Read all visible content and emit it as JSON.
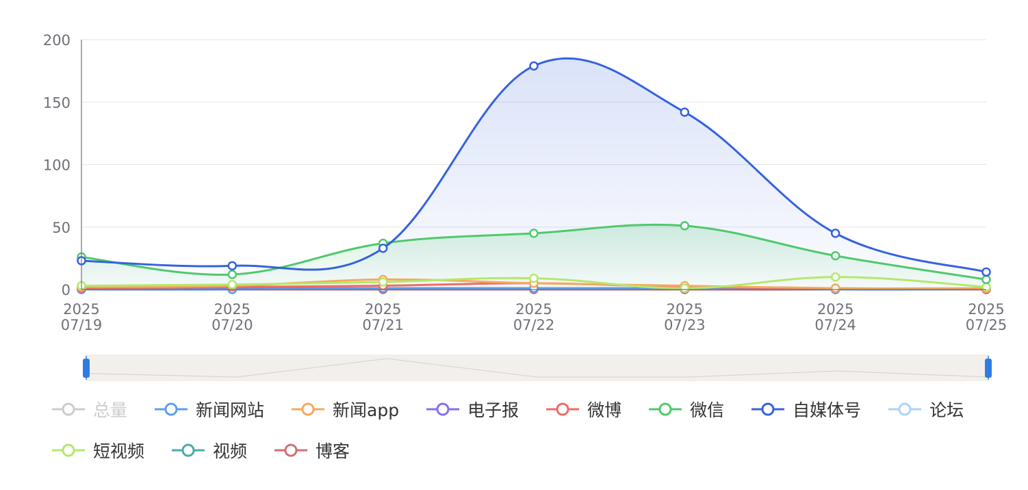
{
  "chart_data": {
    "type": "line",
    "x": [
      "2025\n07/19",
      "2025\n07/20",
      "2025\n07/21",
      "2025\n07/22",
      "2025\n07/23",
      "2025\n07/24",
      "2025\n07/25"
    ],
    "ylim": [
      0,
      200
    ],
    "yticks": [
      0,
      50,
      100,
      150,
      200
    ],
    "grid": true,
    "legend_position": "bottom",
    "series": [
      {
        "name": "总量",
        "color": "#c8c8c8",
        "visible": false,
        "values": [
          null,
          null,
          null,
          null,
          null,
          null,
          null
        ]
      },
      {
        "name": "新闻网站",
        "color": "#5a9ff0",
        "visible": true,
        "values": [
          0,
          0,
          1,
          1,
          1,
          0,
          0
        ]
      },
      {
        "name": "新闻app",
        "color": "#f6a95b",
        "visible": true,
        "values": [
          2,
          3,
          8,
          5,
          3,
          1,
          1
        ]
      },
      {
        "name": "电子报",
        "color": "#8a6cf0",
        "visible": true,
        "values": [
          1,
          1,
          1,
          1,
          0,
          0,
          0
        ]
      },
      {
        "name": "微博",
        "color": "#f36a63",
        "visible": true,
        "values": [
          1,
          2,
          3,
          5,
          2,
          1,
          0
        ]
      },
      {
        "name": "微信",
        "color": "#4ec96c",
        "visible": true,
        "area": true,
        "values": [
          26,
          12,
          37,
          45,
          51,
          27,
          8
        ]
      },
      {
        "name": "自媒体号",
        "color": "#3561de",
        "visible": true,
        "area": true,
        "values": [
          23,
          19,
          33,
          179,
          142,
          45,
          14
        ]
      },
      {
        "name": "论坛",
        "color": "#aad3f8",
        "visible": true,
        "values": [
          0,
          0,
          0,
          0,
          0,
          0,
          0
        ]
      },
      {
        "name": "短视频",
        "color": "#b4e86c",
        "visible": true,
        "values": [
          3,
          4,
          6,
          9,
          1,
          10,
          2
        ]
      },
      {
        "name": "视频",
        "color": "#4aaaa9",
        "visible": true,
        "values": [
          0,
          0,
          0,
          0,
          0,
          0,
          0
        ]
      },
      {
        "name": "博客",
        "color": "#cf7070",
        "visible": true,
        "values": [
          0,
          0,
          0,
          0,
          0,
          0,
          0
        ]
      }
    ],
    "datazoom": {
      "range": [
        0,
        1
      ],
      "preview": [
        180,
        0,
        900,
        0,
        0,
        300,
        0
      ]
    }
  }
}
